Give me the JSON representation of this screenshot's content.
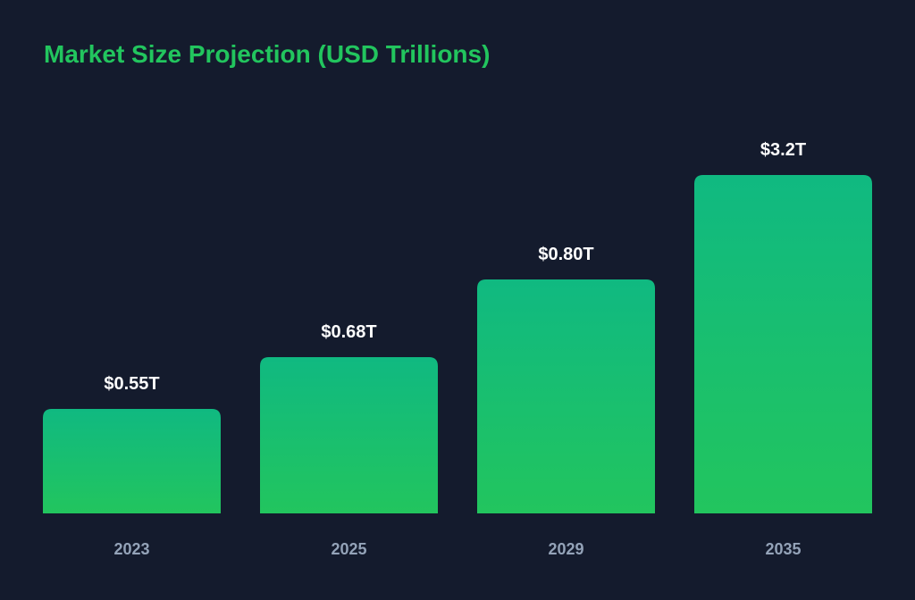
{
  "chart_data": {
    "type": "bar",
    "title": "Market Size Projection (USD Trillions)",
    "categories": [
      "2023",
      "2025",
      "2029",
      "2035"
    ],
    "values": [
      0.55,
      0.68,
      0.8,
      3.2
    ],
    "data_labels": [
      "$0.55T",
      "$0.68T",
      "$0.80T",
      "$3.2T"
    ],
    "xlabel": "",
    "ylabel": "",
    "grid": false,
    "colors": {
      "bar_top": "#10b981",
      "bar_bottom": "#22c55e",
      "title": "#22c55e",
      "value_label": "#ffffff",
      "tick_label": "#94a3b8",
      "background": "#141b2d"
    }
  }
}
